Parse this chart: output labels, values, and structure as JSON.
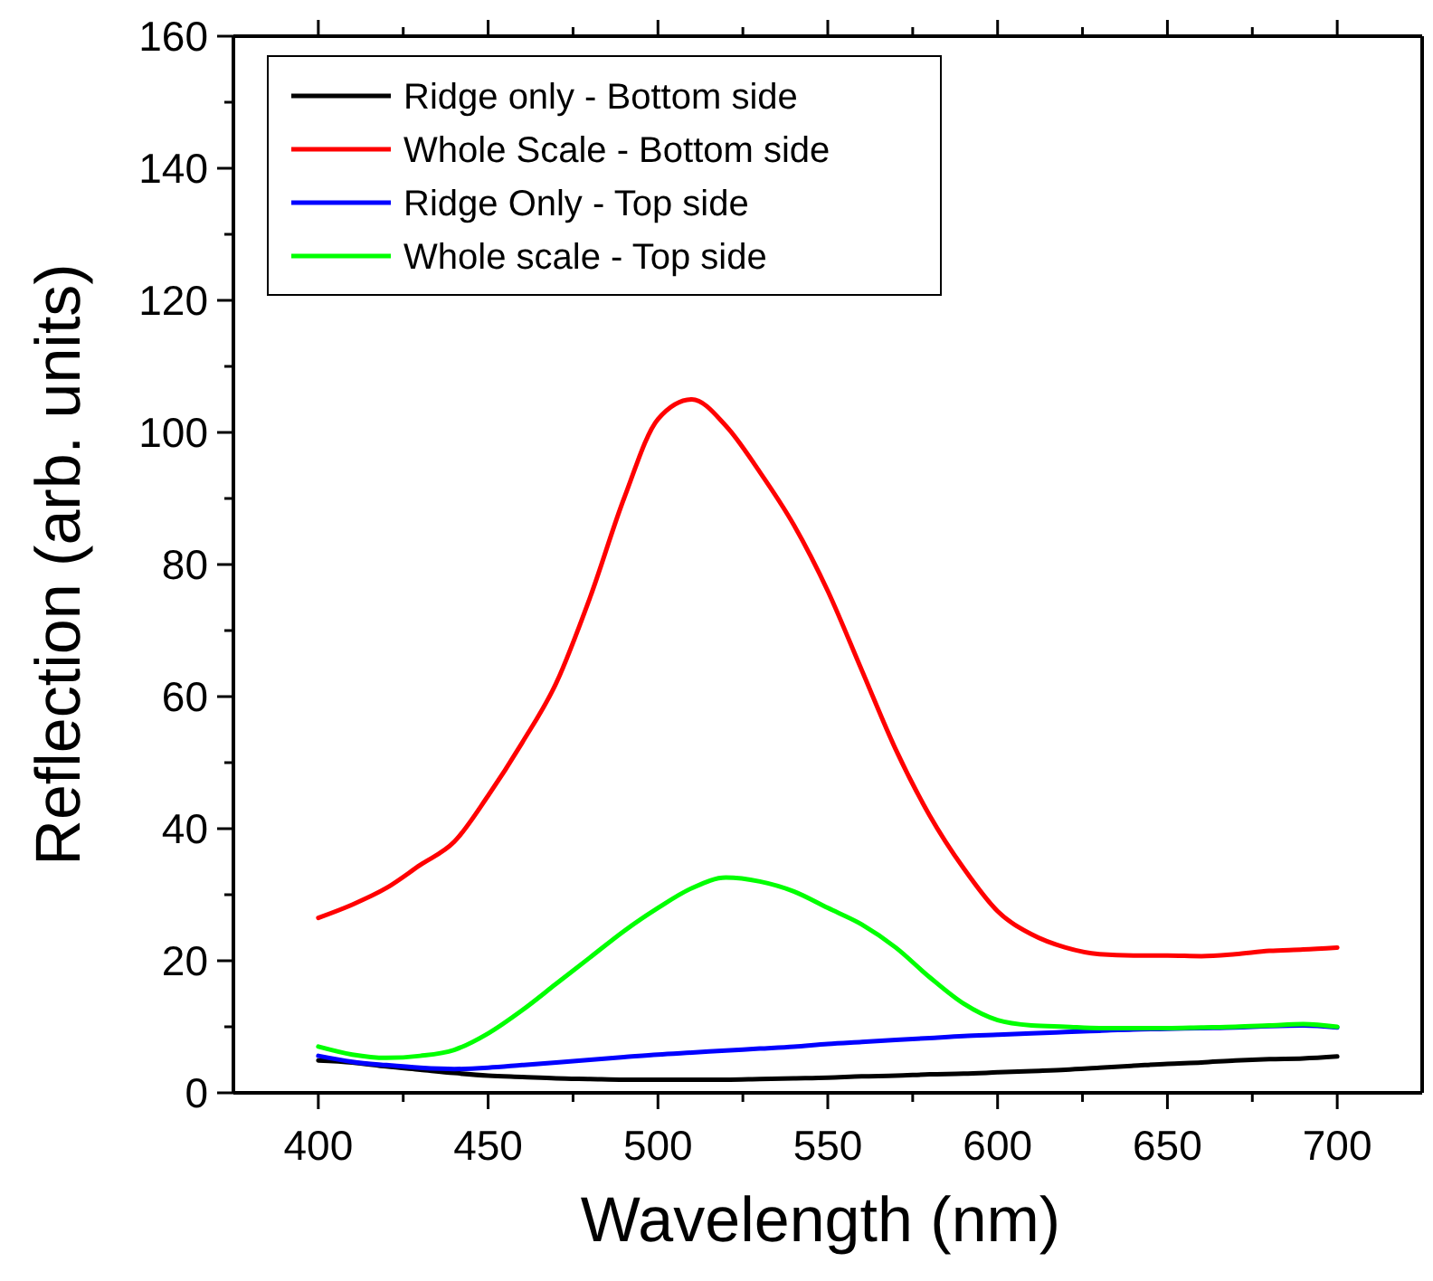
{
  "chart_data": {
    "type": "line",
    "xlabel": "Wavelength (nm)",
    "ylabel": "Reflection (arb. units)",
    "x": [
      400,
      410,
      420,
      430,
      440,
      450,
      460,
      470,
      480,
      490,
      500,
      510,
      520,
      530,
      540,
      550,
      560,
      570,
      580,
      590,
      600,
      610,
      620,
      630,
      640,
      650,
      660,
      670,
      680,
      690,
      700
    ],
    "series": [
      {
        "name": "Ridge only - Bottom side",
        "color": "#000000",
        "values": [
          4.9,
          4.6,
          4,
          3.5,
          3,
          2.6,
          2.4,
          2.2,
          2.1,
          2,
          2,
          2,
          2,
          2.1,
          2.2,
          2.3,
          2.5,
          2.6,
          2.8,
          2.9,
          3.1,
          3.3,
          3.5,
          3.8,
          4.1,
          4.4,
          4.6,
          4.9,
          5.1,
          5.2,
          5.5
        ]
      },
      {
        "name": "Whole Scale - Bottom side",
        "color": "#ff0000",
        "values": [
          26.5,
          28.5,
          31,
          34.5,
          38,
          45,
          53,
          62,
          75,
          90,
          102,
          105,
          101,
          94,
          86,
          76,
          64,
          52,
          42,
          34,
          27.5,
          24,
          22,
          21,
          20.8,
          20.8,
          20.7,
          21,
          21.5,
          21.7,
          22
        ]
      },
      {
        "name": "Ridge Only - Top side",
        "color": "#0000ff",
        "values": [
          5.6,
          4.7,
          4.2,
          3.8,
          3.6,
          3.8,
          4.2,
          4.6,
          5,
          5.4,
          5.8,
          6.1,
          6.4,
          6.7,
          7,
          7.4,
          7.7,
          8,
          8.3,
          8.6,
          8.8,
          9,
          9.2,
          9.4,
          9.6,
          9.7,
          9.8,
          9.9,
          10.1,
          10.2,
          9.9
        ]
      },
      {
        "name": "Whole scale - Top side",
        "color": "#00ff00",
        "values": [
          7,
          5.8,
          5.3,
          5.6,
          6.5,
          9,
          12.5,
          16.5,
          20.5,
          24.5,
          28,
          31,
          32.6,
          32,
          30.5,
          28,
          25.5,
          22,
          17.5,
          13.5,
          11,
          10.2,
          10,
          9.8,
          9.8,
          9.8,
          9.9,
          10,
          10.2,
          10.4,
          10
        ]
      }
    ],
    "xlim": [
      375,
      725
    ],
    "xticks": [
      400,
      {
        "value": 425,
        "label": null
      },
      450,
      {
        "value": 475,
        "label": null
      },
      500,
      {
        "value": 525,
        "label": null
      },
      550,
      {
        "value": 575,
        "label": null
      },
      600,
      {
        "value": 625,
        "label": null
      },
      650,
      {
        "value": 675,
        "label": null
      },
      700
    ],
    "ylim": [
      0,
      160
    ],
    "yticks": [
      0,
      {
        "value": 10,
        "label": null
      },
      20,
      {
        "value": 30,
        "label": null
      },
      40,
      {
        "value": 50,
        "label": null
      },
      60,
      {
        "value": 70,
        "label": null
      },
      80,
      {
        "value": 90,
        "label": null
      },
      100,
      {
        "value": 110,
        "label": null
      },
      120,
      {
        "value": 130,
        "label": null
      },
      140,
      {
        "value": 150,
        "label": null
      },
      160
    ],
    "legend": "top left",
    "grid": false,
    "line_style": "solid"
  }
}
